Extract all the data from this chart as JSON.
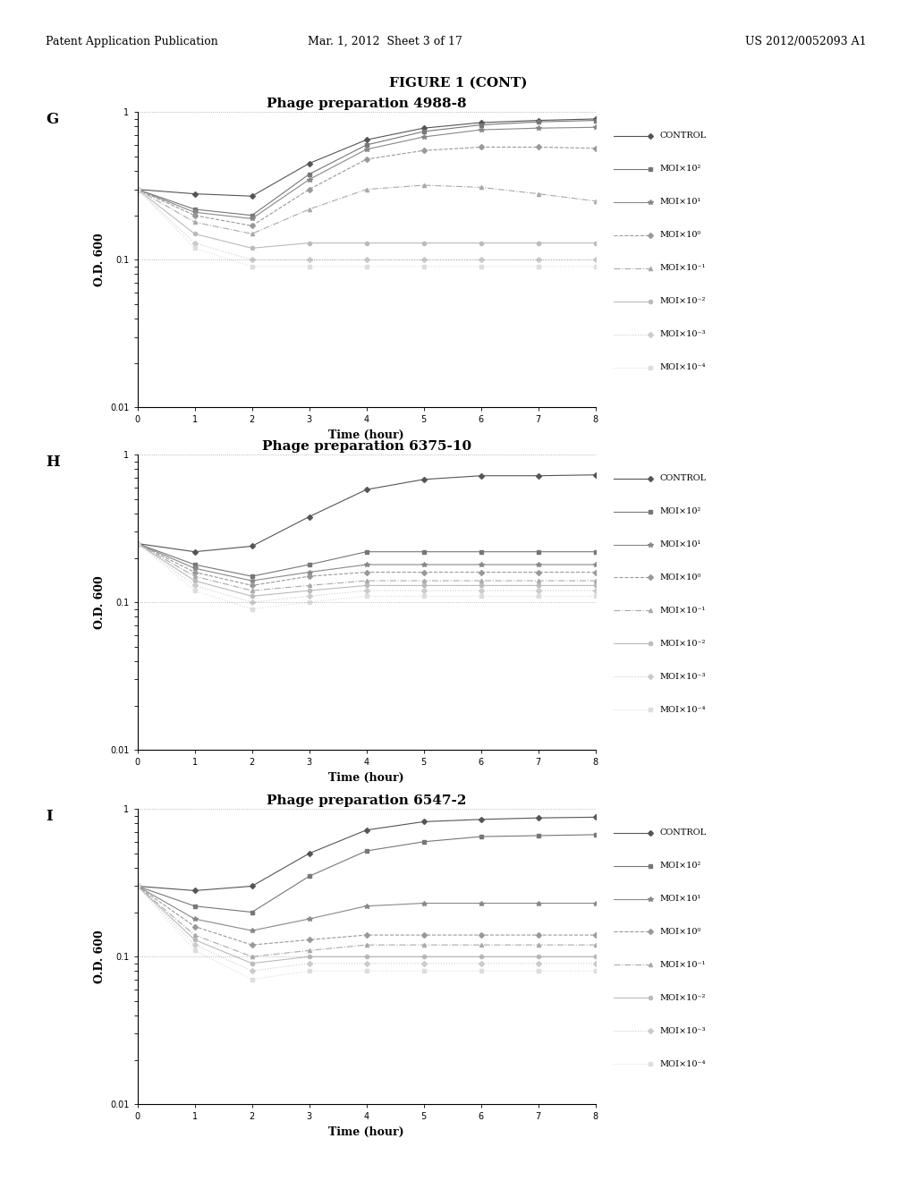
{
  "header_left": "Patent Application Publication",
  "header_center": "Mar. 1, 2012  Sheet 3 of 17",
  "header_right": "US 2012/0052093 A1",
  "figure_title": "FIGURE 1 (CONT)",
  "panels": [
    {
      "label": "G",
      "title": "Phage preparation 4988-8",
      "time": [
        0,
        1,
        2,
        3,
        4,
        5,
        6,
        7,
        8
      ],
      "series": [
        {
          "name": "CONTROL",
          "values": [
            0.3,
            0.28,
            0.27,
            0.45,
            0.65,
            0.78,
            0.85,
            0.88,
            0.9
          ],
          "color": "#555555",
          "ls": "-",
          "marker": "D",
          "ms": 3
        },
        {
          "name": "MOI×10²",
          "values": [
            0.3,
            0.22,
            0.2,
            0.38,
            0.6,
            0.74,
            0.82,
            0.86,
            0.88
          ],
          "color": "#777777",
          "ls": "-",
          "marker": "s",
          "ms": 3
        },
        {
          "name": "MOI×10¹",
          "values": [
            0.3,
            0.21,
            0.19,
            0.35,
            0.56,
            0.68,
            0.76,
            0.78,
            0.79
          ],
          "color": "#888888",
          "ls": "-",
          "marker": "*",
          "ms": 4
        },
        {
          "name": "MOI×10⁰",
          "values": [
            0.3,
            0.2,
            0.17,
            0.3,
            0.48,
            0.55,
            0.58,
            0.58,
            0.57
          ],
          "color": "#999999",
          "ls": "--",
          "marker": "D",
          "ms": 3
        },
        {
          "name": "MOI×10⁻¹",
          "values": [
            0.3,
            0.18,
            0.15,
            0.22,
            0.3,
            0.32,
            0.31,
            0.28,
            0.25
          ],
          "color": "#aaaaaa",
          "ls": "-.",
          "marker": "^",
          "ms": 3
        },
        {
          "name": "MOI×10⁻²",
          "values": [
            0.3,
            0.15,
            0.12,
            0.13,
            0.13,
            0.13,
            0.13,
            0.13,
            0.13
          ],
          "color": "#bbbbbb",
          "ls": "-",
          "marker": "o",
          "ms": 3
        },
        {
          "name": "MOI×10⁻³",
          "values": [
            0.3,
            0.13,
            0.1,
            0.1,
            0.1,
            0.1,
            0.1,
            0.1,
            0.1
          ],
          "color": "#cccccc",
          "ls": ":",
          "marker": "D",
          "ms": 3
        },
        {
          "name": "MOI×10⁻⁴",
          "values": [
            0.3,
            0.12,
            0.09,
            0.09,
            0.09,
            0.09,
            0.09,
            0.09,
            0.09
          ],
          "color": "#dddddd",
          "ls": ":",
          "marker": "s",
          "ms": 3
        }
      ]
    },
    {
      "label": "H",
      "title": "Phage preparation 6375-10",
      "time": [
        0,
        1,
        2,
        3,
        4,
        5,
        6,
        7,
        8
      ],
      "series": [
        {
          "name": "CONTROL",
          "values": [
            0.25,
            0.22,
            0.24,
            0.38,
            0.58,
            0.68,
            0.72,
            0.72,
            0.73
          ],
          "color": "#555555",
          "ls": "-",
          "marker": "D",
          "ms": 3
        },
        {
          "name": "MOI×10²",
          "values": [
            0.25,
            0.18,
            0.15,
            0.18,
            0.22,
            0.22,
            0.22,
            0.22,
            0.22
          ],
          "color": "#777777",
          "ls": "-",
          "marker": "s",
          "ms": 3
        },
        {
          "name": "MOI×10¹",
          "values": [
            0.25,
            0.17,
            0.14,
            0.16,
            0.18,
            0.18,
            0.18,
            0.18,
            0.18
          ],
          "color": "#888888",
          "ls": "-",
          "marker": "*",
          "ms": 4
        },
        {
          "name": "MOI×10⁰",
          "values": [
            0.25,
            0.16,
            0.13,
            0.15,
            0.16,
            0.16,
            0.16,
            0.16,
            0.16
          ],
          "color": "#999999",
          "ls": "--",
          "marker": "D",
          "ms": 3
        },
        {
          "name": "MOI×10⁻¹",
          "values": [
            0.25,
            0.15,
            0.12,
            0.13,
            0.14,
            0.14,
            0.14,
            0.14,
            0.14
          ],
          "color": "#aaaaaa",
          "ls": "-.",
          "marker": "^",
          "ms": 3
        },
        {
          "name": "MOI×10⁻²",
          "values": [
            0.25,
            0.14,
            0.11,
            0.12,
            0.13,
            0.13,
            0.13,
            0.13,
            0.13
          ],
          "color": "#bbbbbb",
          "ls": "-",
          "marker": "o",
          "ms": 3
        },
        {
          "name": "MOI×10⁻³",
          "values": [
            0.25,
            0.13,
            0.1,
            0.11,
            0.12,
            0.12,
            0.12,
            0.12,
            0.12
          ],
          "color": "#cccccc",
          "ls": ":",
          "marker": "D",
          "ms": 3
        },
        {
          "name": "MOI×10⁻⁴",
          "values": [
            0.25,
            0.12,
            0.09,
            0.1,
            0.11,
            0.11,
            0.11,
            0.11,
            0.11
          ],
          "color": "#dddddd",
          "ls": ":",
          "marker": "s",
          "ms": 3
        }
      ]
    },
    {
      "label": "I",
      "title": "Phage preparation 6547-2",
      "time": [
        0,
        1,
        2,
        3,
        4,
        5,
        6,
        7,
        8
      ],
      "series": [
        {
          "name": "CONTROL",
          "values": [
            0.3,
            0.28,
            0.3,
            0.5,
            0.72,
            0.82,
            0.85,
            0.87,
            0.88
          ],
          "color": "#555555",
          "ls": "-",
          "marker": "D",
          "ms": 3
        },
        {
          "name": "MOI×10²",
          "values": [
            0.3,
            0.22,
            0.2,
            0.35,
            0.52,
            0.6,
            0.65,
            0.66,
            0.67
          ],
          "color": "#777777",
          "ls": "-",
          "marker": "s",
          "ms": 3
        },
        {
          "name": "MOI×10¹",
          "values": [
            0.3,
            0.18,
            0.15,
            0.18,
            0.22,
            0.23,
            0.23,
            0.23,
            0.23
          ],
          "color": "#888888",
          "ls": "-",
          "marker": "*",
          "ms": 4
        },
        {
          "name": "MOI×10⁰",
          "values": [
            0.3,
            0.16,
            0.12,
            0.13,
            0.14,
            0.14,
            0.14,
            0.14,
            0.14
          ],
          "color": "#999999",
          "ls": "--",
          "marker": "D",
          "ms": 3
        },
        {
          "name": "MOI×10⁻¹",
          "values": [
            0.3,
            0.14,
            0.1,
            0.11,
            0.12,
            0.12,
            0.12,
            0.12,
            0.12
          ],
          "color": "#aaaaaa",
          "ls": "-.",
          "marker": "^",
          "ms": 3
        },
        {
          "name": "MOI×10⁻²",
          "values": [
            0.3,
            0.13,
            0.09,
            0.1,
            0.1,
            0.1,
            0.1,
            0.1,
            0.1
          ],
          "color": "#bbbbbb",
          "ls": "-",
          "marker": "o",
          "ms": 3
        },
        {
          "name": "MOI×10⁻³",
          "values": [
            0.3,
            0.12,
            0.08,
            0.09,
            0.09,
            0.09,
            0.09,
            0.09,
            0.09
          ],
          "color": "#cccccc",
          "ls": ":",
          "marker": "D",
          "ms": 3
        },
        {
          "name": "MOI×10⁻⁴",
          "values": [
            0.3,
            0.11,
            0.07,
            0.08,
            0.08,
            0.08,
            0.08,
            0.08,
            0.08
          ],
          "color": "#dddddd",
          "ls": ":",
          "marker": "s",
          "ms": 3
        }
      ]
    }
  ],
  "ylim": [
    0.01,
    1.0
  ],
  "xlim": [
    0,
    8
  ],
  "yticks": [
    0.01,
    0.1,
    1.0
  ],
  "ytick_labels": [
    "0.01",
    "0.1",
    "1"
  ],
  "xticks": [
    0,
    1,
    2,
    3,
    4,
    5,
    6,
    7,
    8
  ],
  "xlabel": "Time (hour)",
  "ylabel": "O.D. 600",
  "hlines": [
    0.1,
    1.0
  ],
  "background_color": "#ffffff"
}
